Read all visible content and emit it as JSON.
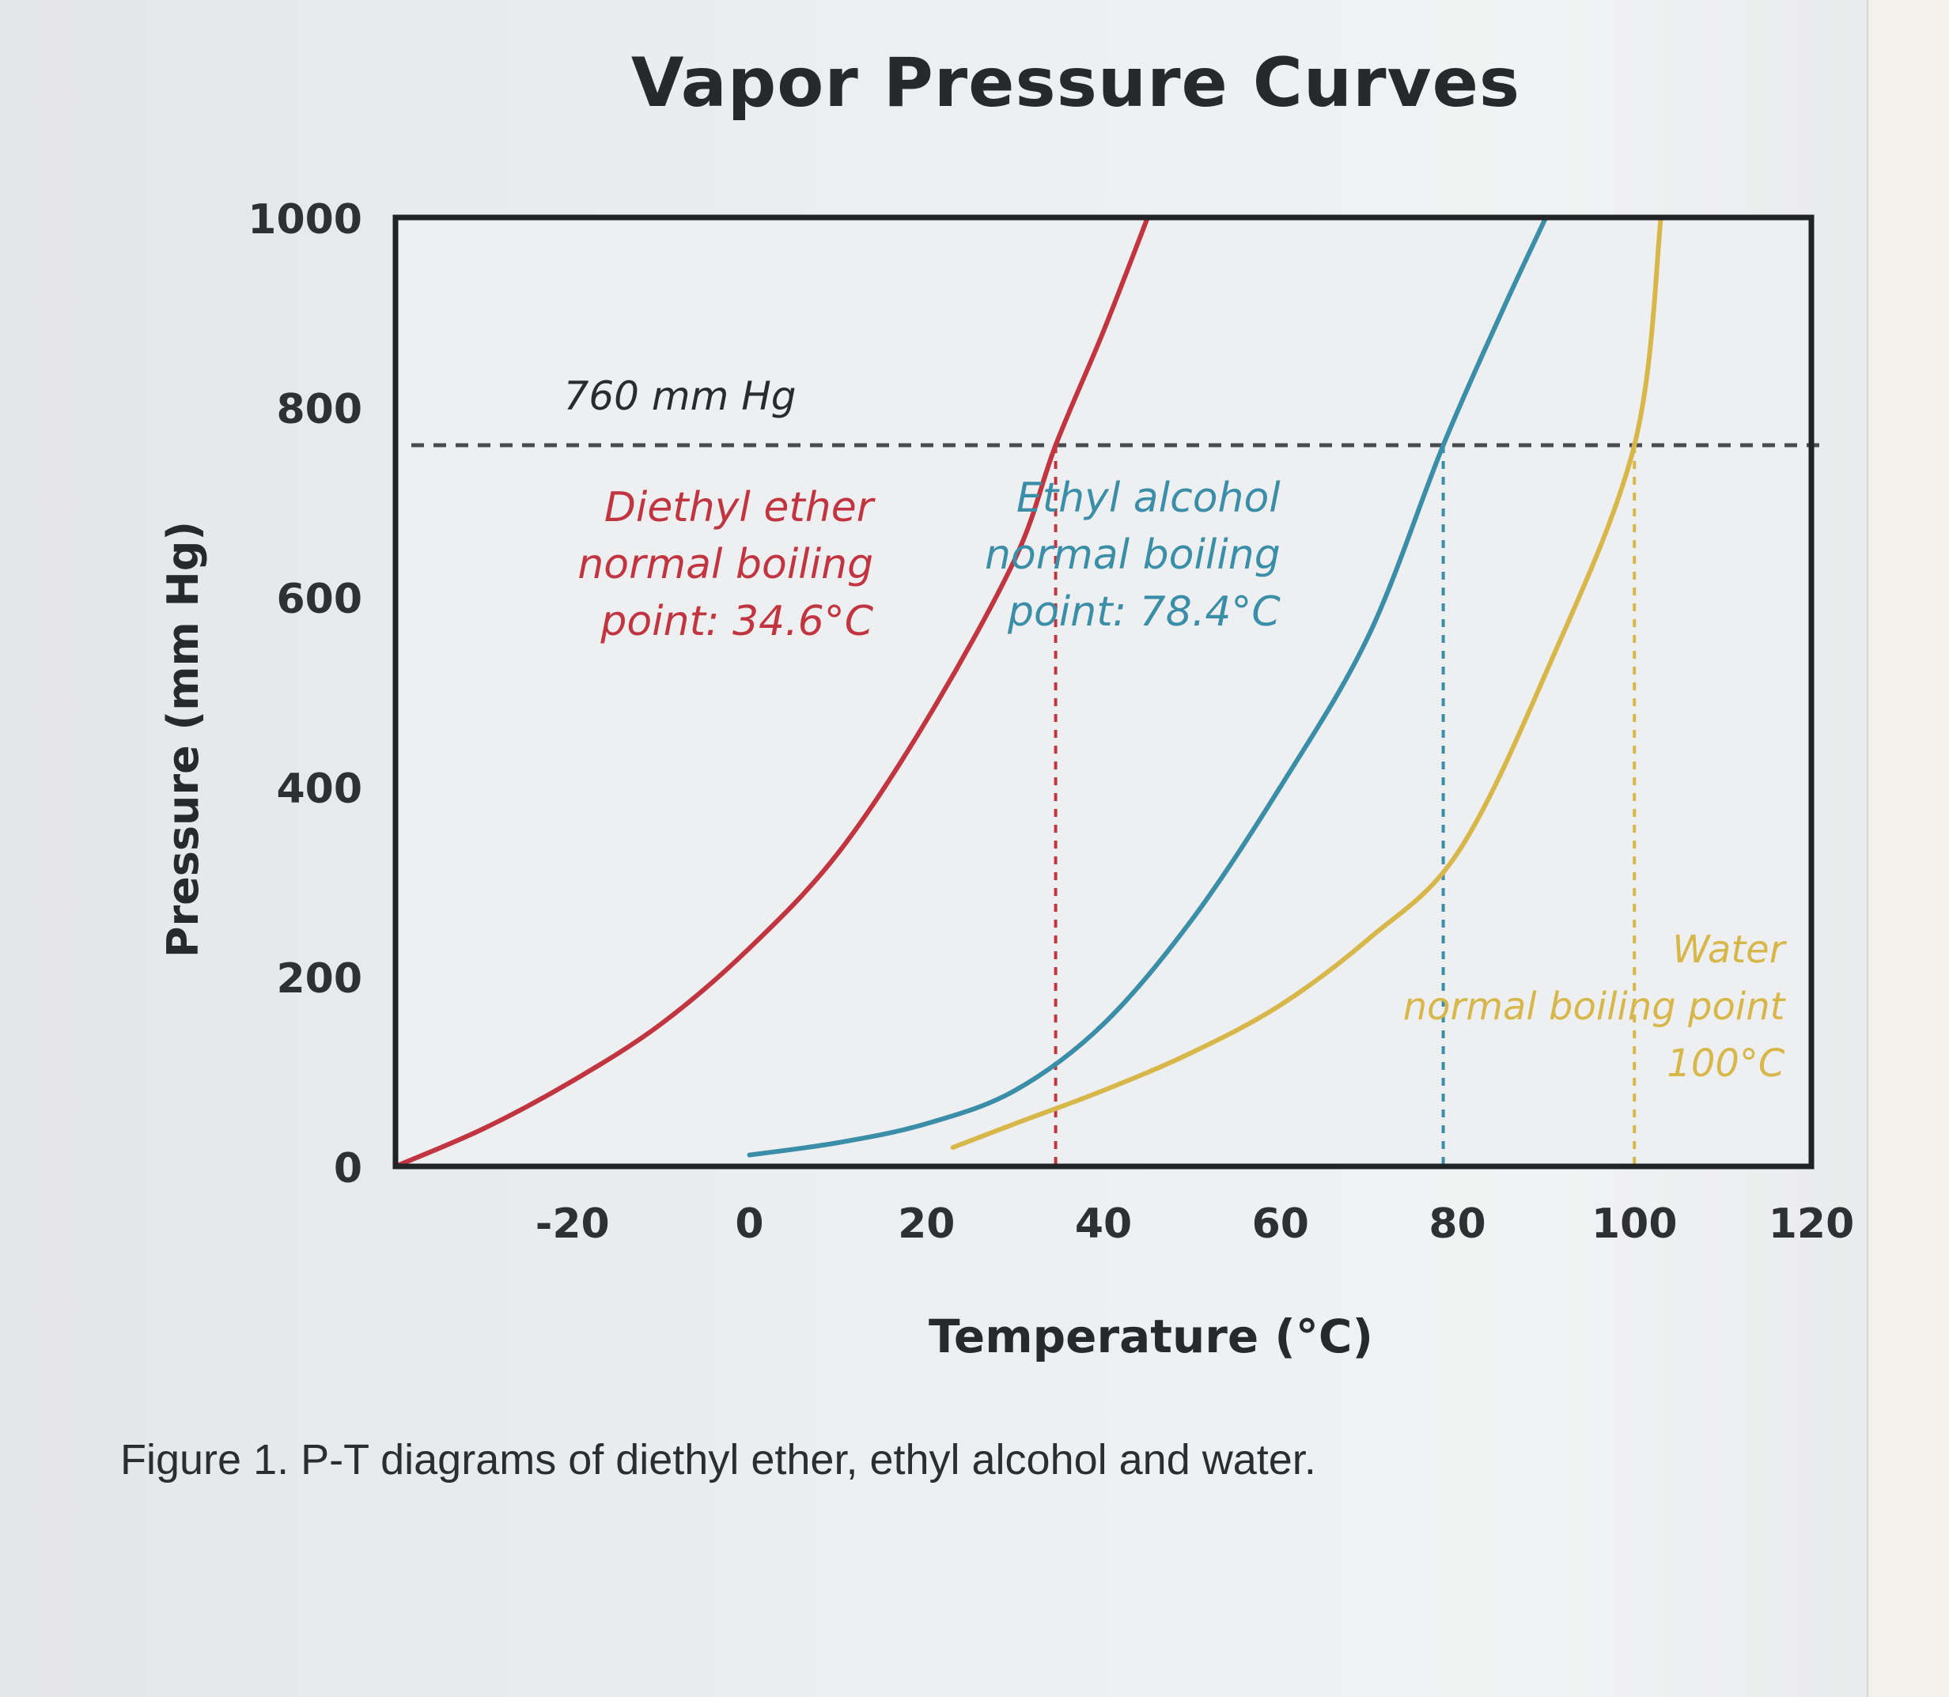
{
  "chart_data": {
    "type": "line",
    "title": "Vapor Pressure Curves",
    "xlabel": "Temperature (°C)",
    "ylabel": "Pressure (mm Hg)",
    "xlim": [
      -40,
      120
    ],
    "ylim": [
      0,
      1000
    ],
    "x_ticks": [
      "-20",
      "0",
      "20",
      "40",
      "60",
      "80",
      "100",
      "120"
    ],
    "y_ticks": [
      "0",
      "200",
      "400",
      "600",
      "800",
      "1000"
    ],
    "grid": false,
    "reference_line": {
      "y": 760,
      "label": "760 mm Hg"
    },
    "series": [
      {
        "key": "ether",
        "color": "#c0353f",
        "label_lines": [
          "Diethyl ether",
          "normal boiling",
          "point: 34.6°C"
        ],
        "boiling_point": 34.6,
        "x": [
          -40,
          -30,
          -20,
          -10,
          0,
          10,
          20,
          30,
          34.6,
          40,
          45
        ],
        "y": [
          0,
          40,
          90,
          150,
          230,
          330,
          470,
          640,
          760,
          880,
          1000
        ]
      },
      {
        "key": "ethanol",
        "color": "#3a8ea8",
        "label_lines": [
          "Ethyl alcohol",
          "normal boiling",
          "point: 78.4°C"
        ],
        "boiling_point": 78.4,
        "x": [
          0,
          10,
          20,
          30,
          40,
          50,
          60,
          70,
          78.4,
          85,
          90
        ],
        "y": [
          12,
          25,
          45,
          80,
          150,
          260,
          400,
          560,
          760,
          900,
          1000
        ]
      },
      {
        "key": "water",
        "color": "#d8b74a",
        "label_lines": [
          "Water",
          "normal boiling point",
          "100°C"
        ],
        "boiling_point": 100,
        "x": [
          23,
          30,
          40,
          50,
          60,
          70,
          80,
          90,
          100,
          103
        ],
        "y": [
          20,
          45,
          80,
          120,
          170,
          240,
          330,
          520,
          760,
          1000
        ]
      }
    ]
  },
  "caption": "Figure 1. P-T diagrams of diethyl ether, ethyl alcohol and water."
}
